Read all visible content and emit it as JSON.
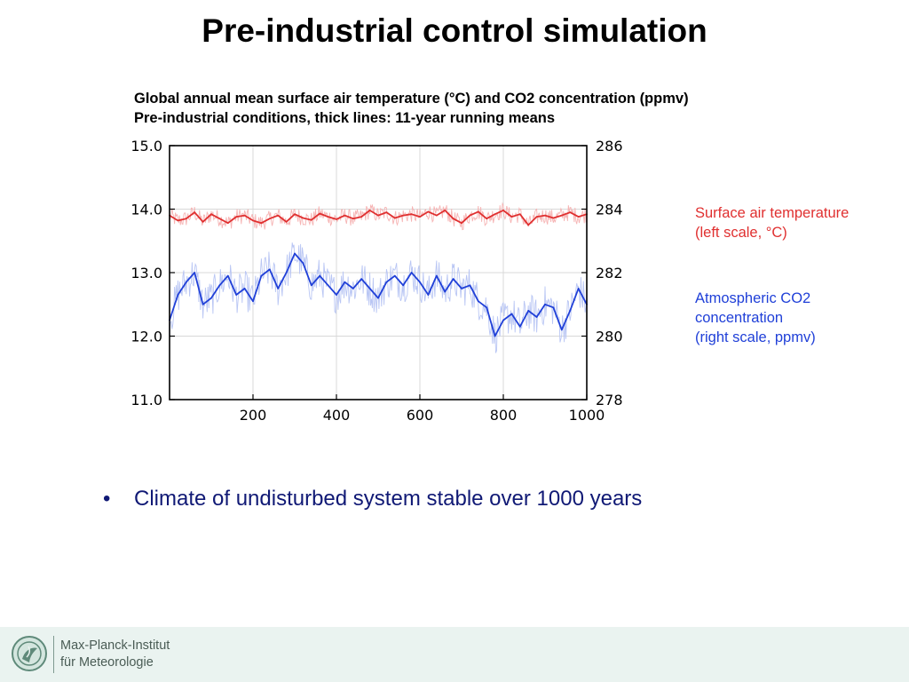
{
  "slide": {
    "title": "Pre-industrial control simulation",
    "bullet_marker": "•",
    "bullet_text": "Climate of undisturbed system stable over 1000 years"
  },
  "footer": {
    "institute_line1": "Max-Planck-Institut",
    "institute_line2": "für Meteorologie",
    "logo_icon": "minerva-logo-icon"
  },
  "chart_data": {
    "type": "line",
    "title_line1": "Global annual mean surface air temperature (°C) and CO2 concentration (ppmv)",
    "title_line2": "Pre-industrial conditions, thick lines: 11-year running means",
    "xlabel": "",
    "xlim": [
      0,
      1000
    ],
    "x_ticks": [
      200,
      400,
      600,
      800,
      1000
    ],
    "y_left": {
      "label": "",
      "lim": [
        11.0,
        15.0
      ],
      "ticks": [
        15.0,
        14.0,
        13.0,
        12.0,
        11.0
      ]
    },
    "y_right": {
      "label": "",
      "lim": [
        278,
        286
      ],
      "ticks": [
        286,
        284,
        282,
        280,
        278
      ]
    },
    "grid": true,
    "legend": [
      {
        "lines": [
          "Surface air temperature",
          "(left scale, °C)"
        ],
        "color": "#e03030"
      },
      {
        "lines": [
          "Atmospheric CO2",
          "concentration",
          "(right scale, ppmv)"
        ],
        "color": "#2040d8"
      }
    ],
    "series": [
      {
        "name": "Surface air temperature",
        "axis": "left",
        "color": "#e03030",
        "running_mean": {
          "x": [
            0,
            20,
            40,
            60,
            80,
            100,
            120,
            140,
            160,
            180,
            200,
            220,
            240,
            260,
            280,
            300,
            320,
            340,
            360,
            380,
            400,
            420,
            440,
            460,
            480,
            500,
            520,
            540,
            560,
            580,
            600,
            620,
            640,
            660,
            680,
            700,
            720,
            740,
            760,
            780,
            800,
            820,
            840,
            860,
            880,
            900,
            920,
            940,
            960,
            980,
            1000
          ],
          "y": [
            13.9,
            13.82,
            13.85,
            13.95,
            13.8,
            13.92,
            13.85,
            13.78,
            13.88,
            13.9,
            13.82,
            13.78,
            13.85,
            13.9,
            13.8,
            13.92,
            13.86,
            13.83,
            13.93,
            13.88,
            13.84,
            13.9,
            13.85,
            13.88,
            13.98,
            13.9,
            13.95,
            13.86,
            13.9,
            13.92,
            13.88,
            13.96,
            13.9,
            13.98,
            13.85,
            13.78,
            13.9,
            13.96,
            13.85,
            13.92,
            13.98,
            13.88,
            13.92,
            13.75,
            13.88,
            13.9,
            13.86,
            13.9,
            13.95,
            13.88,
            13.92
          ]
        }
      },
      {
        "name": "Atmospheric CO2 concentration",
        "axis": "right",
        "color": "#2040d8",
        "running_mean": {
          "x": [
            0,
            20,
            40,
            60,
            80,
            100,
            120,
            140,
            160,
            180,
            200,
            220,
            240,
            260,
            280,
            300,
            320,
            340,
            360,
            380,
            400,
            420,
            440,
            460,
            480,
            500,
            520,
            540,
            560,
            580,
            600,
            620,
            640,
            660,
            680,
            700,
            720,
            740,
            760,
            780,
            800,
            820,
            840,
            860,
            880,
            900,
            920,
            940,
            960,
            980,
            1000
          ],
          "y": [
            280.5,
            281.3,
            281.7,
            282.0,
            281.0,
            281.2,
            281.6,
            281.9,
            281.3,
            281.5,
            281.1,
            281.9,
            282.1,
            281.5,
            282.0,
            282.6,
            282.3,
            281.6,
            281.9,
            281.6,
            281.3,
            281.7,
            281.5,
            281.8,
            281.5,
            281.2,
            281.7,
            281.9,
            281.6,
            282.0,
            281.7,
            281.3,
            281.9,
            281.4,
            281.8,
            281.5,
            281.6,
            281.1,
            280.9,
            280.0,
            280.5,
            280.7,
            280.3,
            280.8,
            280.6,
            281.0,
            280.9,
            280.2,
            280.8,
            281.5,
            281.0
          ]
        }
      }
    ]
  }
}
